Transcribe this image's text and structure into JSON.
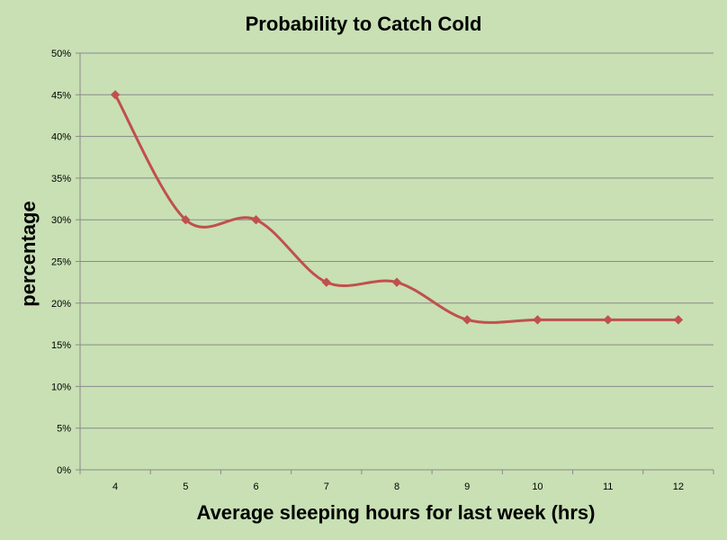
{
  "chart_data": {
    "type": "line",
    "title": "Probability to Catch Cold",
    "xlabel": "Average sleeping hours for last week (hrs)",
    "ylabel": "percentage",
    "x": [
      "4",
      "5",
      "6",
      "7",
      "8",
      "9",
      "10",
      "11",
      "12"
    ],
    "series": [
      {
        "values": [
          45,
          30,
          30,
          22.5,
          22.5,
          18,
          18,
          18,
          18
        ],
        "color": "#c0504d",
        "marker": "diamond",
        "smooth": true
      }
    ],
    "ylim": [
      0,
      50
    ],
    "yticks": [
      0,
      5,
      10,
      15,
      20,
      25,
      30,
      35,
      40,
      45,
      50
    ],
    "ytick_labels": [
      "0%",
      "5%",
      "10%",
      "15%",
      "20%",
      "25%",
      "30%",
      "35%",
      "40%",
      "45%",
      "50%"
    ],
    "grid": true,
    "legend": "none",
    "background": "#c8e0b4"
  }
}
